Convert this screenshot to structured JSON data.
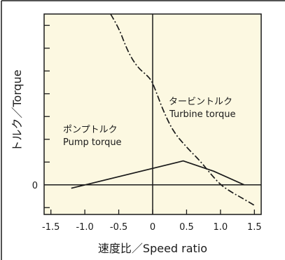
{
  "chart_data": {
    "type": "line",
    "xlabel": "速度比／Speed ratio",
    "ylabel": "トルク／Torque",
    "xlim": [
      -1.6,
      1.6
    ],
    "ylim": [
      -1.3,
      7.5
    ],
    "x_ticks": [
      -1.5,
      -1.0,
      -0.5,
      0,
      0.5,
      1.0,
      1.5
    ],
    "x_tick_labels": [
      "-1.5",
      "-1.0",
      "-0.5",
      "0",
      "0.5",
      "1.0",
      "1.5"
    ],
    "y_tick_values": [
      -1,
      0,
      1,
      2,
      3,
      4,
      5,
      6,
      7
    ],
    "y_tick_labels": [
      {
        "value": 0,
        "label": "0"
      }
    ],
    "grid": false,
    "legend": "none",
    "annotations": [
      {
        "lines": [
          "ポンプトルク",
          "Pump torque"
        ],
        "series": "pump"
      },
      {
        "lines": [
          "タービントルク",
          "Turbine torque"
        ],
        "series": "turbine"
      }
    ],
    "series": [
      {
        "id": "turbine",
        "style": "dash-dot",
        "points": [
          [
            -0.62,
            7.5
          ],
          [
            -0.5,
            6.9
          ],
          [
            -0.4,
            6.1
          ],
          [
            -0.3,
            5.5
          ],
          [
            -0.2,
            5.1
          ],
          [
            -0.1,
            4.85
          ],
          [
            -0.02,
            4.6
          ],
          [
            0.05,
            4.1
          ],
          [
            0.15,
            3.3
          ],
          [
            0.3,
            2.35
          ],
          [
            0.5,
            1.65
          ],
          [
            0.7,
            1.05
          ],
          [
            0.85,
            0.5
          ],
          [
            1.0,
            0.0
          ],
          [
            1.15,
            -0.3
          ],
          [
            1.3,
            -0.55
          ],
          [
            1.5,
            -0.9
          ]
        ]
      },
      {
        "id": "pump",
        "style": "solid",
        "points": [
          [
            -1.2,
            -0.15
          ],
          [
            0.45,
            1.05
          ],
          [
            0.9,
            0.6
          ],
          [
            1.35,
            0.0
          ]
        ]
      }
    ],
    "colors": {
      "background": "#fcf8e1",
      "line": "#1a1a1a"
    }
  }
}
